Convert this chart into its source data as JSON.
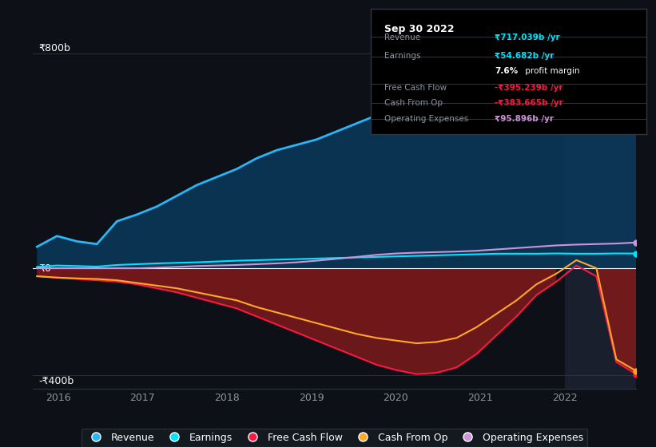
{
  "background_color": "#0d1117",
  "plot_bg_color": "#0d1117",
  "highlight_bg": "#1a1f2e",
  "y_label_800": "₹800b",
  "y_label_0": "₹0",
  "y_label_neg400": "-₹400b",
  "x_ticks": [
    2016,
    2017,
    2018,
    2019,
    2020,
    2021,
    2022
  ],
  "ylim": [
    -450,
    850
  ],
  "xlim_start": 2015.7,
  "xlim_end": 2022.85,
  "highlight_start": 2022.0,
  "highlight_end": 2022.85,
  "revenue_color": "#29b6f6",
  "revenue_fill": "#0a3a5c",
  "earnings_color": "#00e5ff",
  "fcf_color": "#ff1744",
  "fcf_fill": "#7b1a1a",
  "cashop_color": "#ffa726",
  "opex_color": "#ce93d8",
  "legend_bg": "#161b22",
  "legend_border": "#30363d",
  "tooltip_bg": "#000000",
  "tooltip_border": "#30363d",
  "revenue_dot_color": "#29b6f6",
  "earnings_dot_color": "#00e5ff",
  "opex_dot_color": "#ce93d8",
  "revenue": [
    80,
    120,
    100,
    90,
    175,
    200,
    230,
    270,
    310,
    340,
    370,
    410,
    440,
    460,
    480,
    510,
    540,
    570,
    590,
    600,
    610,
    620,
    630,
    640,
    650,
    660,
    670,
    680,
    690,
    700,
    717
  ],
  "earnings": [
    5,
    10,
    8,
    6,
    12,
    15,
    18,
    20,
    22,
    25,
    28,
    30,
    32,
    34,
    36,
    38,
    40,
    42,
    44,
    46,
    48,
    50,
    52,
    54,
    54,
    54,
    55,
    54,
    54,
    55,
    54.682
  ],
  "fcf": [
    -30,
    -35,
    -40,
    -45,
    -50,
    -60,
    -75,
    -90,
    -110,
    -130,
    -150,
    -180,
    -210,
    -240,
    -270,
    -300,
    -330,
    -360,
    -380,
    -395,
    -390,
    -370,
    -320,
    -250,
    -180,
    -100,
    -50,
    10,
    -30,
    -350,
    -395.239
  ],
  "cashop": [
    -30,
    -35,
    -38,
    -40,
    -45,
    -55,
    -65,
    -75,
    -90,
    -105,
    -120,
    -145,
    -165,
    -185,
    -205,
    -225,
    -245,
    -260,
    -270,
    -280,
    -275,
    -260,
    -220,
    -170,
    -120,
    -60,
    -20,
    30,
    0,
    -340,
    -383.665
  ],
  "opex": [
    0,
    0,
    0,
    0,
    0,
    0,
    2,
    5,
    8,
    10,
    12,
    15,
    18,
    22,
    28,
    35,
    42,
    50,
    55,
    58,
    60,
    62,
    65,
    70,
    75,
    80,
    85,
    88,
    90,
    92,
    95.896
  ],
  "tooltip_title": "Sep 30 2022",
  "tooltip_items": [
    {
      "label": "Revenue",
      "value": "₹717.039b /yr",
      "color": "#00e5ff"
    },
    {
      "label": "Earnings",
      "value": "₹54.682b /yr",
      "color": "#00e5ff"
    },
    {
      "label": "margin",
      "value": "7.6% profit margin",
      "color": "#ffffff"
    },
    {
      "label": "Free Cash Flow",
      "value": "-₹395.239b /yr",
      "color": "#ff1744"
    },
    {
      "label": "Cash From Op",
      "value": "-₹383.665b /yr",
      "color": "#ff1744"
    },
    {
      "label": "Operating Expenses",
      "value": "₹95.896b /yr",
      "color": "#ce93d8"
    }
  ],
  "legend_items": [
    {
      "label": "Revenue",
      "color": "#29b6f6"
    },
    {
      "label": "Earnings",
      "color": "#00e5ff"
    },
    {
      "label": "Free Cash Flow",
      "color": "#ff1744"
    },
    {
      "label": "Cash From Op",
      "color": "#ffa726"
    },
    {
      "label": "Operating Expenses",
      "color": "#ce93d8"
    }
  ]
}
